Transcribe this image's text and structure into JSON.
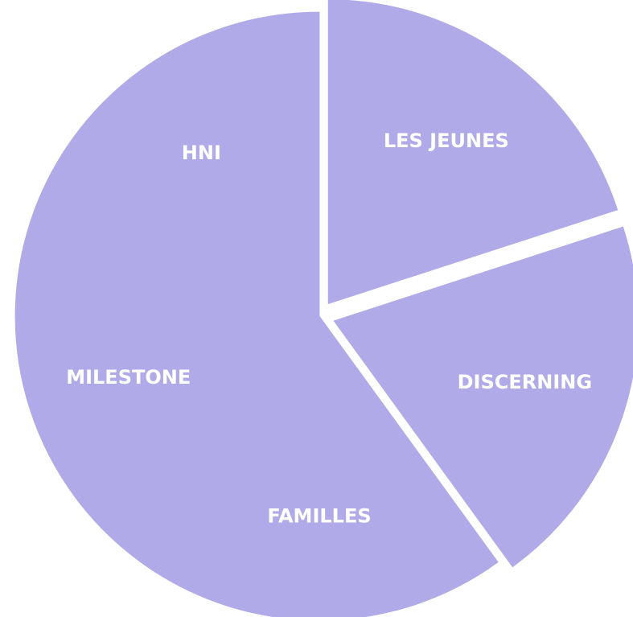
{
  "chart_data": {
    "type": "pie",
    "categories": [
      "LES JEUNES",
      "DISCERNING",
      "FAMILLES",
      "MILESTONE",
      "HNI"
    ],
    "values": [
      20,
      20,
      20,
      20,
      20
    ],
    "color": "#b0aae8",
    "exploded": [
      true,
      true,
      false,
      false,
      false
    ]
  }
}
